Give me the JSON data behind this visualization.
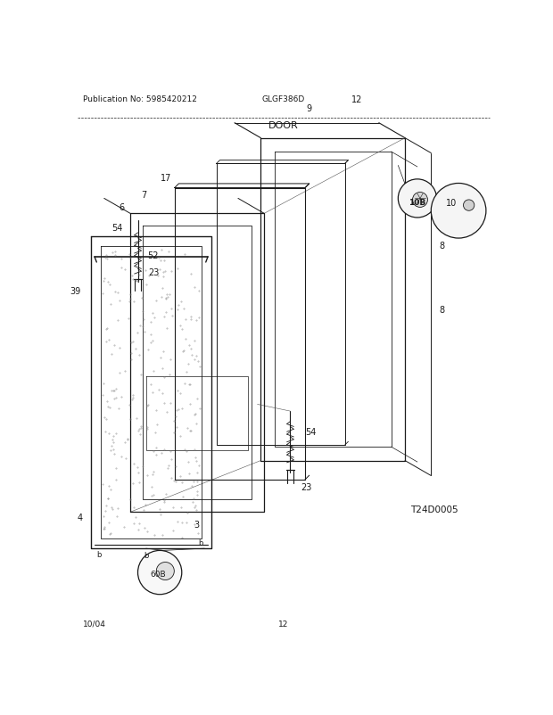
{
  "pub_no": "Publication No: 5985420212",
  "model": "GLGF386D",
  "title": "DOOR",
  "footer_left": "10/04",
  "footer_center": "12",
  "diagram_code": "T24D0005",
  "bg_color": "#ffffff"
}
